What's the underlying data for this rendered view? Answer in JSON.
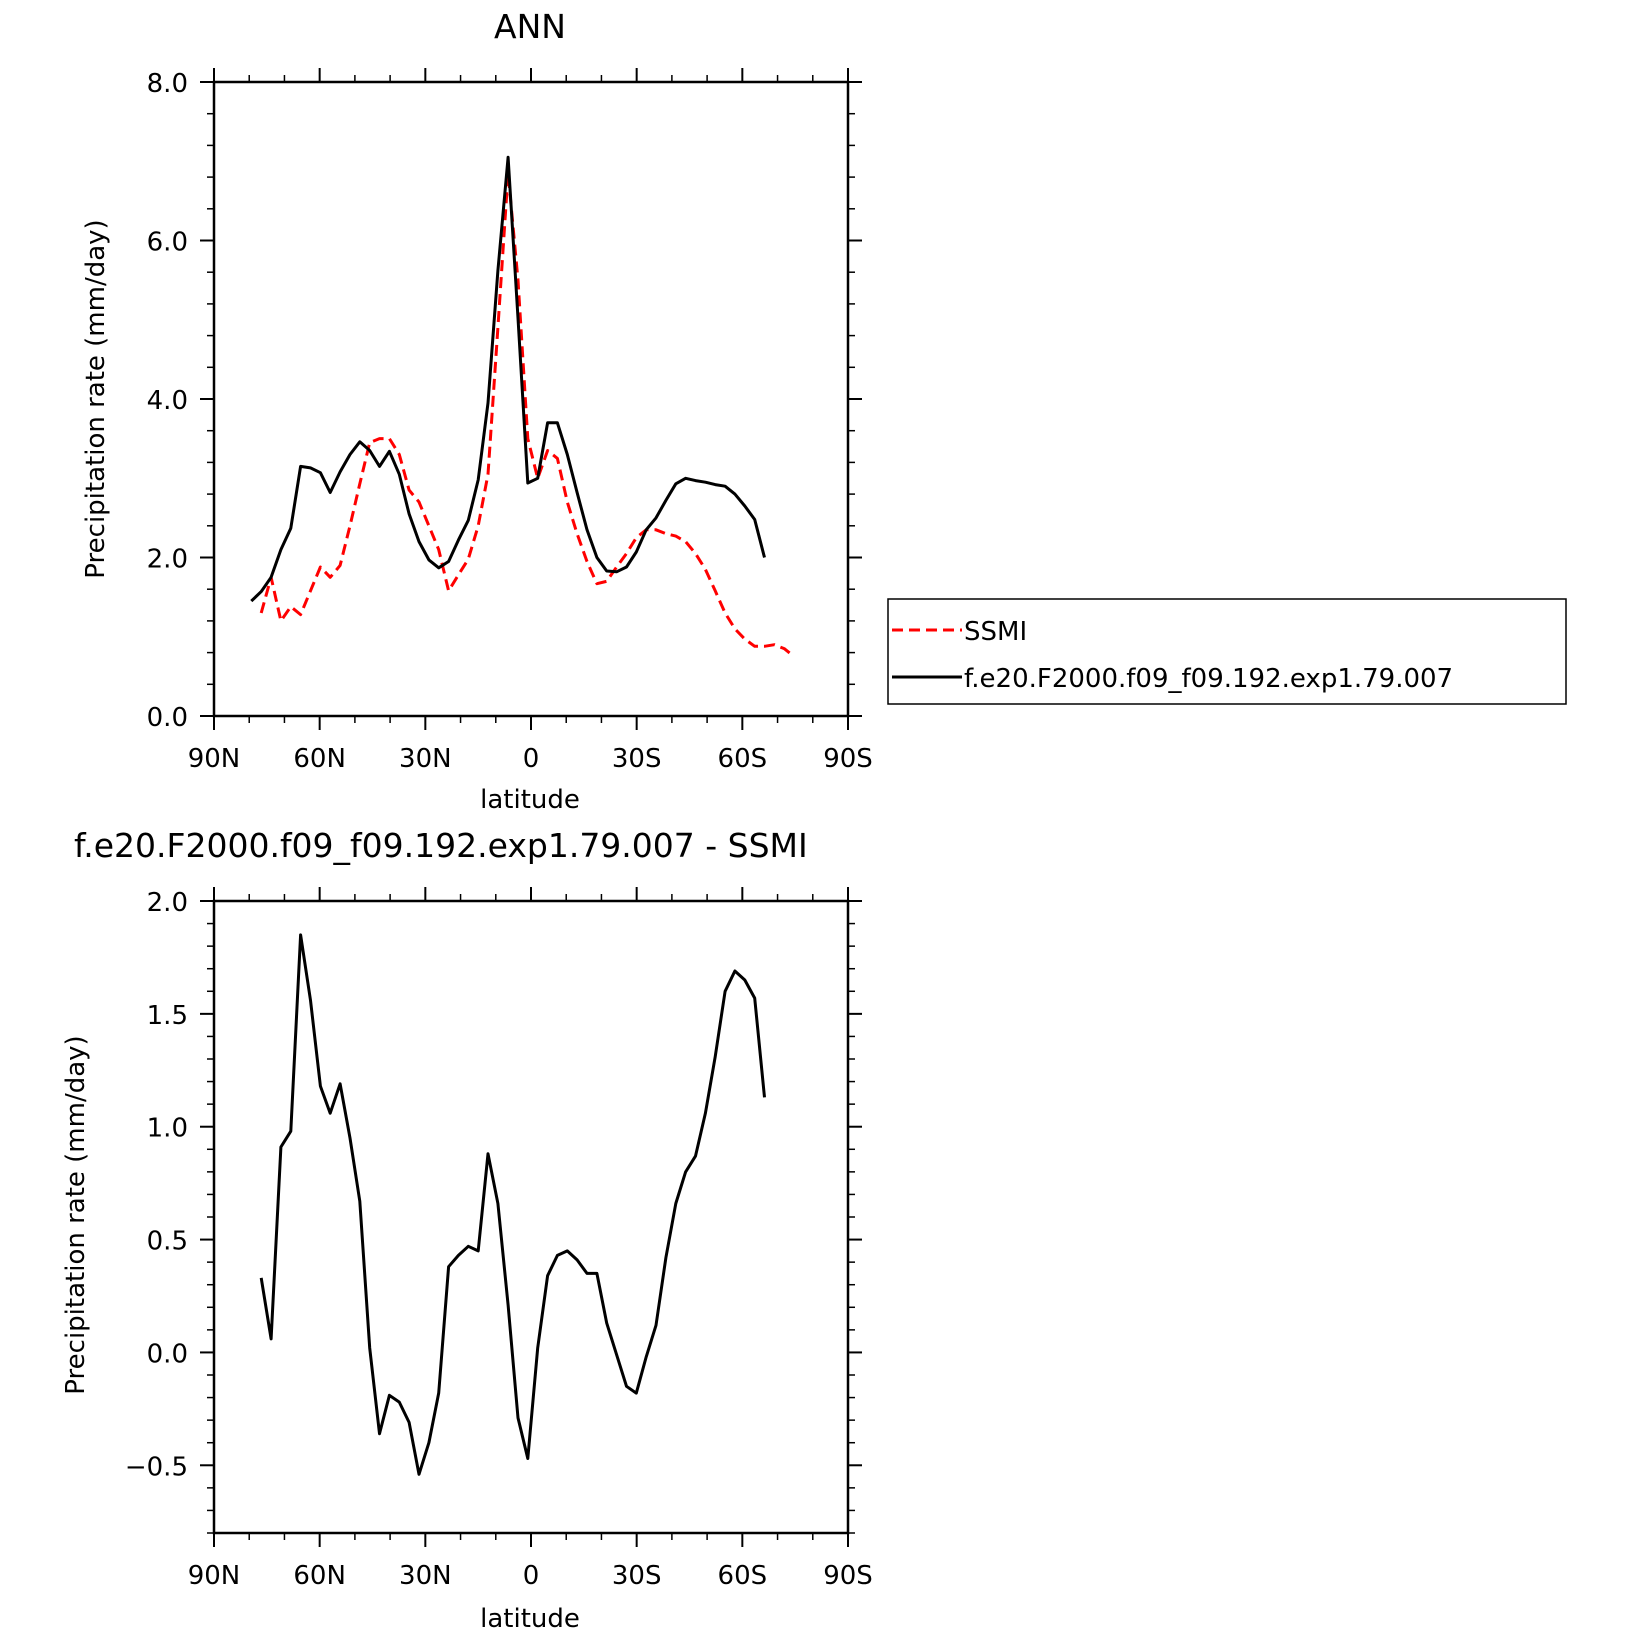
{
  "chart_data": [
    {
      "type": "line",
      "title": "ANN",
      "xlabel": "latitude",
      "ylabel": "Precipitation rate (mm/day)",
      "xlim": [
        90,
        -90
      ],
      "ylim": [
        0,
        8
      ],
      "x_ticks": [
        90,
        60,
        30,
        0,
        -30,
        -60,
        -90
      ],
      "x_tick_labels": [
        "90N",
        "60N",
        "30N",
        "0",
        "30S",
        "60S",
        "90S"
      ],
      "y_ticks": [
        0,
        2,
        4,
        6,
        8
      ],
      "y_tick_labels": [
        "0.0",
        "2.0",
        "4.0",
        "6.0",
        "8.0"
      ],
      "grid": false,
      "legend_placement": "right",
      "series": [
        {
          "name": "SSMI",
          "color": "#ff0000",
          "dash": "dashed",
          "x": [
            76.6,
            73.8,
            71.0,
            68.2,
            65.4,
            62.6,
            59.8,
            57.0,
            54.2,
            51.4,
            48.6,
            45.8,
            43.0,
            40.2,
            37.4,
            34.6,
            31.8,
            29.0,
            26.2,
            23.4,
            20.6,
            17.8,
            15.0,
            12.2,
            9.4,
            6.5,
            3.7,
            0.9,
            -1.9,
            -4.7,
            -7.5,
            -10.3,
            -13.1,
            -15.9,
            -18.7,
            -21.5,
            -24.3,
            -27.1,
            -29.9,
            -32.7,
            -35.5,
            -38.3,
            -41.1,
            -43.9,
            -46.7,
            -49.5,
            -52.3,
            -55.1,
            -57.9,
            -60.7,
            -63.5,
            -66.3,
            -69.1,
            -71.9,
            -74.7
          ],
          "y": [
            1.3,
            1.75,
            1.2,
            1.38,
            1.28,
            1.58,
            1.88,
            1.75,
            1.9,
            2.4,
            2.93,
            3.45,
            3.5,
            3.5,
            3.3,
            2.85,
            2.7,
            2.4,
            2.1,
            1.58,
            1.78,
            1.98,
            2.4,
            3.05,
            4.9,
            6.85,
            5.5,
            3.5,
            3.0,
            3.35,
            3.25,
            2.7,
            2.3,
            1.95,
            1.67,
            1.7,
            1.88,
            2.05,
            2.25,
            2.35,
            2.35,
            2.3,
            2.27,
            2.2,
            2.05,
            1.85,
            1.58,
            1.3,
            1.1,
            0.97,
            0.88,
            0.88,
            0.9,
            0.85,
            0.75
          ]
        },
        {
          "name": "f.e20.F2000.f09_f09.192.exp1.79.007",
          "color": "#000000",
          "dash": "solid",
          "x": [
            79.4,
            76.6,
            73.8,
            71.0,
            68.2,
            65.4,
            62.6,
            59.8,
            57.0,
            54.2,
            51.4,
            48.6,
            45.8,
            43.0,
            40.2,
            37.4,
            34.6,
            31.8,
            29.0,
            26.2,
            23.4,
            20.6,
            17.8,
            15.0,
            12.2,
            9.4,
            6.5,
            3.7,
            0.9,
            -1.9,
            -4.7,
            -7.5,
            -10.3,
            -13.1,
            -15.9,
            -18.7,
            -21.5,
            -24.3,
            -27.1,
            -29.9,
            -32.7,
            -35.5,
            -38.3,
            -41.1,
            -43.9,
            -46.7,
            -49.5,
            -52.3,
            -55.1,
            -57.9,
            -60.7,
            -63.5,
            -66.3
          ],
          "y": [
            1.45,
            1.57,
            1.75,
            2.1,
            2.37,
            3.15,
            3.13,
            3.07,
            2.82,
            3.08,
            3.3,
            3.46,
            3.35,
            3.15,
            3.34,
            3.05,
            2.55,
            2.2,
            1.97,
            1.87,
            1.95,
            2.22,
            2.47,
            2.98,
            3.95,
            5.62,
            7.05,
            5.02,
            2.94,
            3.0,
            3.7,
            3.7,
            3.3,
            2.82,
            2.35,
            2.0,
            1.83,
            1.82,
            1.88,
            2.07,
            2.35,
            2.5,
            2.72,
            2.93,
            3.0,
            2.97,
            2.95,
            2.92,
            2.9,
            2.8,
            2.65,
            2.48,
            2.0
          ]
        }
      ]
    },
    {
      "type": "line",
      "title": "f.e20.F2000.f09_f09.192.exp1.79.007 - SSMI",
      "xlabel": "latitude",
      "ylabel": "Precipitation rate (mm/day)",
      "xlim": [
        90,
        -90
      ],
      "ylim": [
        -0.8,
        2.0
      ],
      "x_ticks": [
        90,
        60,
        30,
        0,
        -30,
        -60,
        -90
      ],
      "x_tick_labels": [
        "90N",
        "60N",
        "30N",
        "0",
        "30S",
        "60S",
        "90S"
      ],
      "y_ticks": [
        -0.5,
        0,
        0.5,
        1.0,
        1.5,
        2.0
      ],
      "y_tick_labels": [
        "−0.5",
        "0.0",
        "0.5",
        "1.0",
        "1.5",
        "2.0"
      ],
      "grid": false,
      "series": [
        {
          "color": "#000000",
          "dash": "solid",
          "x": [
            76.6,
            73.8,
            71.0,
            68.2,
            65.4,
            62.6,
            59.8,
            57.0,
            54.2,
            51.4,
            48.6,
            45.8,
            43.0,
            40.2,
            37.4,
            34.6,
            31.8,
            29.0,
            26.2,
            23.4,
            20.6,
            17.8,
            15.0,
            12.2,
            9.4,
            6.5,
            3.7,
            0.9,
            -1.9,
            -4.7,
            -7.5,
            -10.3,
            -13.1,
            -15.9,
            -18.7,
            -21.5,
            -24.3,
            -27.1,
            -29.9,
            -32.7,
            -35.5,
            -38.3,
            -41.1,
            -43.9,
            -46.7,
            -49.5,
            -52.3,
            -55.1,
            -57.9,
            -60.7,
            -63.5,
            -66.3
          ],
          "y": [
            0.33,
            0.06,
            0.91,
            0.98,
            1.85,
            1.56,
            1.18,
            1.06,
            1.19,
            0.95,
            0.67,
            0.02,
            -0.36,
            -0.19,
            -0.22,
            -0.31,
            -0.54,
            -0.4,
            -0.18,
            0.38,
            0.43,
            0.47,
            0.45,
            0.88,
            0.66,
            0.21,
            -0.29,
            -0.47,
            0.02,
            0.34,
            0.43,
            0.45,
            0.41,
            0.35,
            0.35,
            0.13,
            -0.01,
            -0.15,
            -0.18,
            -0.02,
            0.12,
            0.42,
            0.66,
            0.8,
            0.87,
            1.06,
            1.31,
            1.6,
            1.69,
            1.65,
            1.57,
            1.13
          ]
        }
      ]
    }
  ]
}
